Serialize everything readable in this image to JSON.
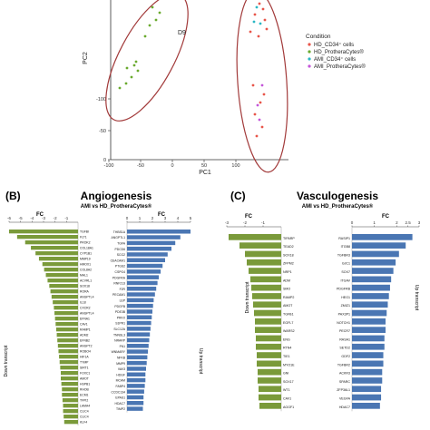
{
  "pca": {
    "xlabel": "PC1",
    "ylabel": "PC2",
    "xticks": [
      "-100",
      "-50",
      "0",
      "50",
      "100"
    ],
    "yticks": [
      "-100",
      "-50",
      "0"
    ],
    "d9_label": "D9",
    "legend_title": "Condition",
    "legend": [
      {
        "label": "HD_CD34⁺ cells",
        "color": "#e8554a"
      },
      {
        "label": "HD_ProtheraCytes®",
        "color": "#6aaa2e"
      },
      {
        "label": "AMI_CD34⁺ cells",
        "color": "#2ab7c4"
      },
      {
        "label": "AMI_ProtheraCytes®",
        "color": "#c455d9"
      }
    ]
  },
  "panel_b": {
    "letter": "(B)",
    "title": "Angiogenesis",
    "subtitle": "AMI vs HD_ProtheraCytes®",
    "fc_label_left": "FC",
    "fc_label_right": "FC",
    "down_label": "Down transcript",
    "up_label": "Up transcript",
    "xticks": [
      "-6",
      "-5",
      "-4",
      "-3",
      "-2",
      "-1",
      "0",
      "1",
      "2",
      "3",
      "4",
      "5"
    ],
    "down_genes": [
      "TGFBI",
      "FLT1",
      "PROK2",
      "COL18A1",
      "CYP1B1",
      "MMP19",
      "HMOX1",
      "COL8A2",
      "MAL1",
      "ACVRL1",
      "SOX18",
      "RORA",
      "ANGPTL4",
      "IL18",
      "CXCR2",
      "ANGPTL4",
      "EFNA1",
      "CAV1",
      "RAMP1",
      "ADM2",
      "EFNB2",
      "ANGPT2",
      "ROBO4",
      "HIF1A",
      "TYMP",
      "SIRT1",
      "FOXC1",
      "AMOT",
      "HSPB1",
      "RHOB",
      "ECM1",
      "TFPI2",
      "LAMA4",
      "CLIC4",
      "CLIC4",
      "KLF4"
    ],
    "up_genes": [
      "THBS1A",
      "ANGPTL1",
      "TGFA",
      "PDCD6",
      "SCG2",
      "CEACAM1",
      "PTGS2",
      "CSPG4",
      "PDGFRA",
      "RNF213",
      "F2R",
      "PECAM1",
      "LEP",
      "PDGFB",
      "PDE3B",
      "PRKX",
      "S1PR1",
      "SLC12A",
      "TNNSL3",
      "NRARP",
      "FN1",
      "WNMARY",
      "NFKB",
      "MMP9",
      "VAV3",
      "HDGF",
      "MCAM",
      "FABP4",
      "CCDC134",
      "EPAS1",
      "HDAC7",
      "TIMP2"
    ],
    "chart_data": {
      "type": "bar",
      "orientation": "horizontal",
      "xlim": [
        -6,
        5
      ],
      "down": [
        -6.0,
        -5.3,
        -4.6,
        -4.1,
        -3.7,
        -3.4,
        -3.1,
        -2.95,
        -2.8,
        -2.65,
        -2.5,
        -2.4,
        -2.3,
        -2.2,
        -2.1,
        -2.05,
        -2.0,
        -1.95,
        -1.9,
        -1.85,
        -1.8,
        -1.75,
        -1.7,
        -1.65,
        -1.6,
        -1.55,
        -1.5,
        -1.5,
        -1.45,
        -1.4,
        -1.4,
        -1.35,
        -1.3,
        -1.3,
        -1.25,
        -1.2
      ],
      "up": [
        5.0,
        4.2,
        3.8,
        3.5,
        3.2,
        3.0,
        2.8,
        2.65,
        2.5,
        2.4,
        2.3,
        2.2,
        2.1,
        2.05,
        2.0,
        1.95,
        1.9,
        1.85,
        1.8,
        1.75,
        1.7,
        1.65,
        1.6,
        1.55,
        1.5,
        1.45,
        1.45,
        1.4,
        1.35,
        1.3,
        1.3,
        1.25
      ]
    }
  },
  "panel_c": {
    "letter": "(C)",
    "title": "Vasculogenesis",
    "subtitle": "AMI vs HD_ProtheraCytes®",
    "fc_label_left": "FC",
    "fc_label_right": "FC",
    "down_label": "Down transcript",
    "up_label": "Up transcript",
    "xticks": [
      "-3",
      "-2",
      "-1",
      "0",
      "1",
      "2",
      "2.5",
      "3"
    ],
    "down_genes": [
      "TIPARP",
      "TEAD2",
      "SOX18",
      "ZFPM2",
      "NRP1",
      "ADM",
      "SMO",
      "RAMP2",
      "AMOT",
      "TGFB1",
      "EGFL7",
      "WARS2",
      "ENG",
      "RTN4",
      "TIE1",
      "MYO1E",
      "GNI",
      "SOX17",
      "WT1",
      "CAV1",
      "AGGF1"
    ],
    "up_genes": [
      "RASIP1",
      "ITGB8",
      "TGFBR3",
      "GJC1",
      "SOX7",
      "ITGAV",
      "PDGFRB",
      "HEG1",
      "ZMIZ1",
      "PAX3P1",
      "NOTCH1",
      "PECR7",
      "RASA1",
      "SETD2",
      "GDF2",
      "TGFBR2",
      "ACKR3",
      "SPARC",
      "ZFP36L1",
      "VEGFA",
      "HDAC7"
    ],
    "chart_data": {
      "type": "bar",
      "orientation": "horizontal",
      "xlim": [
        -3,
        3
      ],
      "down": [
        -2.9,
        -2.3,
        -2.0,
        -1.9,
        -1.8,
        -1.7,
        -1.65,
        -1.6,
        -1.55,
        -1.5,
        -1.45,
        -1.45,
        -1.4,
        -1.4,
        -1.35,
        -1.35,
        -1.3,
        -1.3,
        -1.25,
        -1.25,
        -1.2
      ],
      "up": [
        2.7,
        2.4,
        2.1,
        1.95,
        1.85,
        1.75,
        1.7,
        1.65,
        1.6,
        1.55,
        1.5,
        1.5,
        1.45,
        1.45,
        1.4,
        1.4,
        1.35,
        1.35,
        1.3,
        1.3,
        1.25
      ]
    }
  }
}
